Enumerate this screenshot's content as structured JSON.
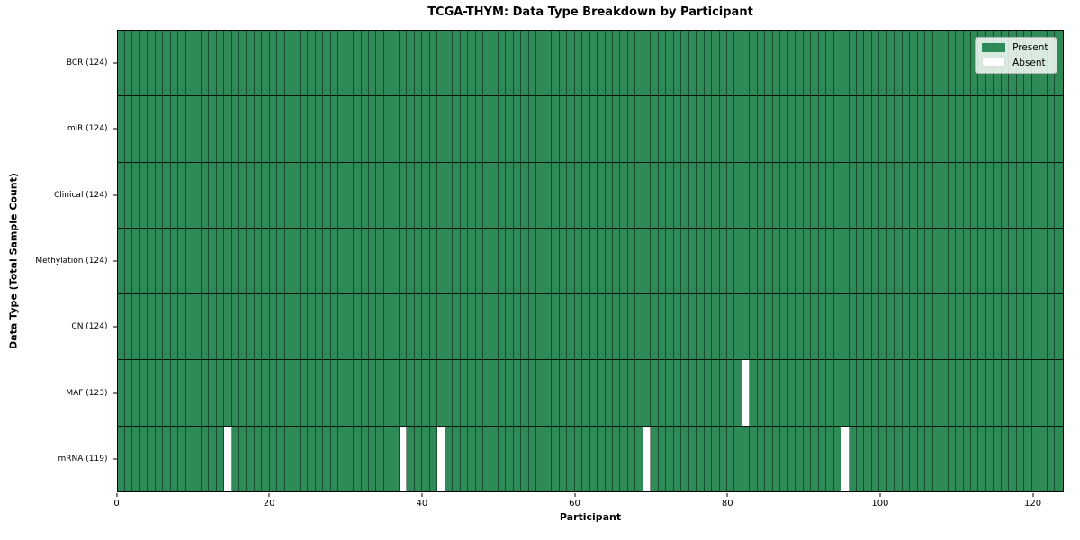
{
  "chart_data": {
    "type": "heatmap",
    "title": "TCGA-THYM: Data Type Breakdown by Participant",
    "xlabel": "Participant",
    "ylabel": "Data Type (Total Sample Count)",
    "n_participants": 124,
    "x_ticks": [
      0,
      20,
      40,
      60,
      80,
      100,
      120
    ],
    "xlim": [
      0,
      124
    ],
    "grid": "cell-borders",
    "legend_position": "upper right",
    "rows": [
      {
        "name": "BCR",
        "label": "BCR (124)",
        "present_count": 124,
        "absent_participants": []
      },
      {
        "name": "miR",
        "label": "miR (124)",
        "present_count": 124,
        "absent_participants": []
      },
      {
        "name": "Clinical",
        "label": "Clinical (124)",
        "present_count": 124,
        "absent_participants": []
      },
      {
        "name": "Methylation",
        "label": "Methylation (124)",
        "present_count": 124,
        "absent_participants": []
      },
      {
        "name": "CN",
        "label": "CN (124)",
        "present_count": 124,
        "absent_participants": []
      },
      {
        "name": "MAF",
        "label": "MAF (123)",
        "present_count": 123,
        "absent_participants": [
          82
        ]
      },
      {
        "name": "mRNA",
        "label": "mRNA (119)",
        "present_count": 119,
        "absent_participants": [
          14,
          37,
          42,
          69,
          95
        ]
      }
    ],
    "legend": [
      {
        "label": "Present",
        "color": "#2e8b57"
      },
      {
        "label": "Absent",
        "color": "#ffffff"
      }
    ],
    "colors": {
      "present": "#2e8b57",
      "absent": "#ffffff",
      "cell_border": "rgba(0,0,0,0.45)",
      "row_border": "rgba(0,0,0,0.85)",
      "spine": "#000000"
    }
  }
}
